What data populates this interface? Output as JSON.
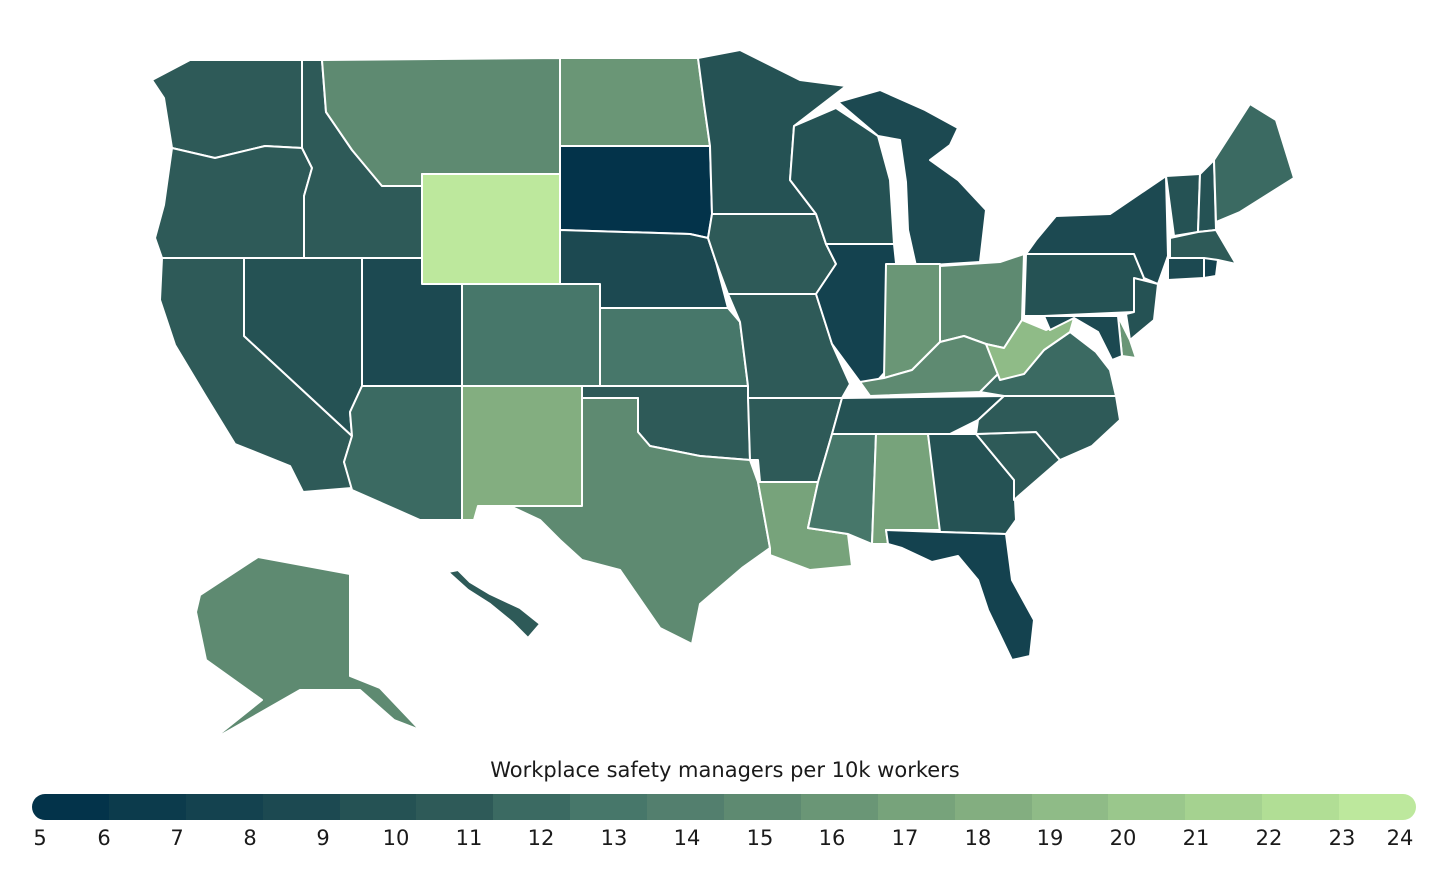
{
  "legend": {
    "title": "Workplace safety managers per 10k workers",
    "ticks": [
      "5",
      "6",
      "7",
      "8",
      "9",
      "10",
      "11",
      "12",
      "13",
      "14",
      "15",
      "16",
      "17",
      "18",
      "19",
      "20",
      "21",
      "22",
      "23",
      "24"
    ],
    "colors": [
      "#03334a",
      "#0c3b4c",
      "#14424f",
      "#1c4951",
      "#255254",
      "#2e5a58",
      "#3b6a62",
      "#47776a",
      "#537f6e",
      "#5e8a71",
      "#6a9676",
      "#77a37b",
      "#83ae80",
      "#8fbb87",
      "#9ac78c",
      "#a5d290",
      "#b1de95",
      "#bde89d"
    ]
  },
  "regions": [
    {
      "id": "WA",
      "value": 10.5
    },
    {
      "id": "OR",
      "value": 10.5
    },
    {
      "id": "CA",
      "value": 10.5
    },
    {
      "id": "NV",
      "value": 9.5
    },
    {
      "id": "ID",
      "value": 10.5
    },
    {
      "id": "MT",
      "value": 15.5
    },
    {
      "id": "WY",
      "value": 23.5
    },
    {
      "id": "UT",
      "value": 8.5
    },
    {
      "id": "AZ",
      "value": 11.5
    },
    {
      "id": "CO",
      "value": 12.5
    },
    {
      "id": "NM",
      "value": 18.5
    },
    {
      "id": "ND",
      "value": 16.5
    },
    {
      "id": "SD",
      "value": 5.5
    },
    {
      "id": "NE",
      "value": 8.5
    },
    {
      "id": "KS",
      "value": 12.5
    },
    {
      "id": "OK",
      "value": 10.5
    },
    {
      "id": "TX",
      "value": 15.5
    },
    {
      "id": "MN",
      "value": 9.5
    },
    {
      "id": "IA",
      "value": 10.5
    },
    {
      "id": "MO",
      "value": 10.5
    },
    {
      "id": "AR",
      "value": 10.5
    },
    {
      "id": "LA",
      "value": 17.5
    },
    {
      "id": "WI",
      "value": 9.5
    },
    {
      "id": "IL",
      "value": 7.5
    },
    {
      "id": "MI",
      "value": 8.5
    },
    {
      "id": "IN",
      "value": 16.5
    },
    {
      "id": "OH",
      "value": 14.5
    },
    {
      "id": "KY",
      "value": 15.5
    },
    {
      "id": "TN",
      "value": 9.5
    },
    {
      "id": "MS",
      "value": 12.5
    },
    {
      "id": "AL",
      "value": 17.5
    },
    {
      "id": "GA",
      "value": 9.5
    },
    {
      "id": "FL",
      "value": 7.5
    },
    {
      "id": "SC",
      "value": 10.5
    },
    {
      "id": "NC",
      "value": 10.5
    },
    {
      "id": "VA",
      "value": 11.5
    },
    {
      "id": "WV",
      "value": 19.5
    },
    {
      "id": "PA",
      "value": 9.5
    },
    {
      "id": "NY",
      "value": 8.5
    },
    {
      "id": "VT",
      "value": 9.5
    },
    {
      "id": "NH",
      "value": 9.5
    },
    {
      "id": "ME",
      "value": 11.5
    },
    {
      "id": "MA",
      "value": 10.5
    },
    {
      "id": "CT",
      "value": 8.5
    },
    {
      "id": "RI",
      "value": 7.5
    },
    {
      "id": "NJ",
      "value": 9.5
    },
    {
      "id": "DE",
      "value": 16.5
    },
    {
      "id": "MD",
      "value": 8.5
    },
    {
      "id": "AK",
      "value": 15.5
    },
    {
      "id": "HI",
      "value": 10.5
    }
  ]
}
